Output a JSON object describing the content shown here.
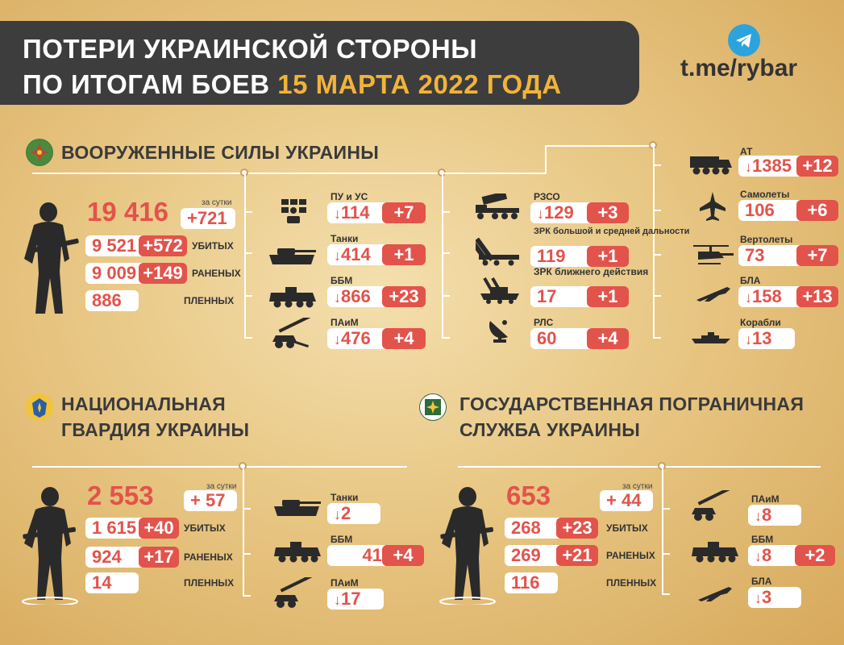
{
  "header": {
    "line1": "ПОТЕРИ УКРАИНСКОЙ СТОРОНЫ",
    "line2_prefix": "ПО ИТОГАМ БОЕВ ",
    "line2_highlight": "15 МАРТА 2022 ГОДА"
  },
  "channel": {
    "link": "t.me/rybar",
    "icon": "telegram-icon"
  },
  "colors": {
    "accent": "#e2534b",
    "highlight": "#f2b33a",
    "dark": "#3d3d3d"
  },
  "afu": {
    "title": "ВООРУЖЕННЫЕ СИЛЫ УКРАИНЫ",
    "total": "19 416",
    "per_day_caption": "за сутки",
    "per_day": "+721",
    "killed": "9 521",
    "killed_delta": "+572",
    "killed_label": "УБИТЫХ",
    "wounded": "9 009",
    "wounded_delta": "+149",
    "wounded_label": "РАНЕНЫХ",
    "captured": "886",
    "captured_label": "ПЛЕННЫХ",
    "col1": [
      {
        "label": "ПУ и УС",
        "value": "114",
        "delta": "+7",
        "icon": "command-post-icon"
      },
      {
        "label": "Танки",
        "value": "414",
        "delta": "+1",
        "icon": "tank-icon"
      },
      {
        "label": "ББМ",
        "value": "866",
        "delta": "+23",
        "icon": "apc-icon"
      },
      {
        "label": "ПАиМ",
        "value": "476",
        "delta": "+4",
        "icon": "artillery-icon"
      }
    ],
    "col2": [
      {
        "label": "РЗСО",
        "value": "129",
        "delta": "+3",
        "icon": "mlrs-icon"
      },
      {
        "label": "ЗРК большой и средней дальности",
        "value": "119",
        "delta": "+1",
        "icon": "sam-launcher-icon"
      },
      {
        "label": "ЗРК ближнего действия",
        "value": "17",
        "delta": "+1",
        "icon": "short-range-sam-icon"
      },
      {
        "label": "РЛС",
        "value": "60",
        "delta": "+4",
        "icon": "radar-icon"
      }
    ],
    "col3": [
      {
        "label": "АТ",
        "value": "1385",
        "delta": "+12",
        "icon": "truck-icon"
      },
      {
        "label": "Самолеты",
        "value": "106",
        "delta": "+6",
        "icon": "plane-icon"
      },
      {
        "label": "Вертолеты",
        "value": "73",
        "delta": "+7",
        "icon": "helicopter-icon"
      },
      {
        "label": "БЛА",
        "value": "158",
        "delta": "+13",
        "icon": "drone-icon"
      },
      {
        "label": "Корабли",
        "value": "13",
        "delta": "",
        "icon": "ship-icon"
      }
    ]
  },
  "ng": {
    "title_line1": "НАЦИОНАЛЬНАЯ",
    "title_line2": "ГВАРДИЯ УКРАИНЫ",
    "total": "2 553",
    "per_day_caption": "за сутки",
    "per_day": "+ 57",
    "killed": "1 615",
    "killed_delta": "+40",
    "killed_label": "УБИТЫХ",
    "wounded": "924",
    "wounded_delta": "+17",
    "wounded_label": "РАНЕНЫХ",
    "captured": "14",
    "captured_label": "ПЛЕННЫХ",
    "items": [
      {
        "label": "Танки",
        "value": "2",
        "delta": "",
        "icon": "tank-icon"
      },
      {
        "label": "ББМ",
        "value": "41",
        "delta": "+4",
        "icon": "apc-icon"
      },
      {
        "label": "ПАиМ",
        "value": "17",
        "delta": "",
        "icon": "artillery-icon"
      }
    ]
  },
  "border": {
    "title_line1": "ГОСУДАРСТВЕННАЯ ПОГРАНИЧНАЯ",
    "title_line2": "СЛУЖБА УКРАИНЫ",
    "total": "653",
    "per_day_caption": "за сутки",
    "per_day": "+ 44",
    "killed": "268",
    "killed_delta": "+23",
    "killed_label": "УБИТЫХ",
    "wounded": "269",
    "wounded_delta": "+21",
    "wounded_label": "РАНЕНЫХ",
    "captured": "116",
    "captured_label": "ПЛЕННЫХ",
    "items": [
      {
        "label": "ПАиМ",
        "value": "8",
        "delta": "",
        "icon": "artillery-icon"
      },
      {
        "label": "ББМ",
        "value": "8",
        "delta": "+2",
        "icon": "apc-icon"
      },
      {
        "label": "БЛА",
        "value": "3",
        "delta": "",
        "icon": "drone-icon"
      }
    ]
  }
}
